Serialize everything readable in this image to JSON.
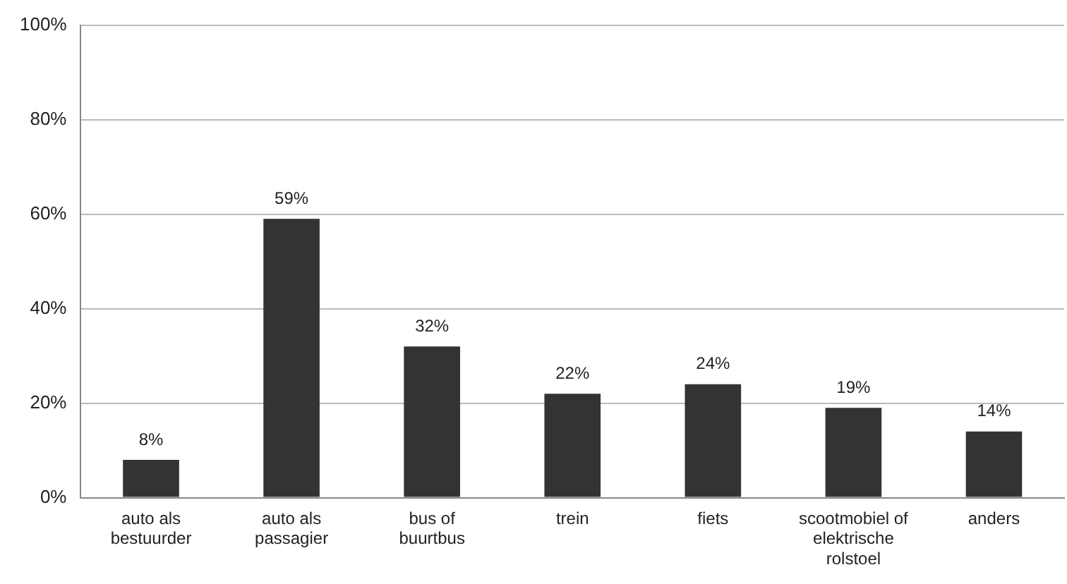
{
  "chart_data": {
    "type": "bar",
    "categories": [
      "auto als bestuurder",
      "auto als passagier",
      "bus of buurtbus",
      "trein",
      "fiets",
      "scootmobiel of elektrische rolstoel",
      "anders"
    ],
    "values": [
      8,
      59,
      32,
      22,
      24,
      19,
      14
    ],
    "value_labels": [
      "8%",
      "59%",
      "32%",
      "22%",
      "24%",
      "19%",
      "14%"
    ],
    "color": "#333333",
    "ylim": [
      0,
      100
    ],
    "yticks": [
      {
        "value": 0,
        "label": "0%"
      },
      {
        "value": 20,
        "label": "20%"
      },
      {
        "value": 40,
        "label": "40%"
      },
      {
        "value": 60,
        "label": "60%"
      },
      {
        "value": 80,
        "label": "80%"
      },
      {
        "value": 100,
        "label": "100%"
      }
    ],
    "grid": "y",
    "legend": false
  }
}
